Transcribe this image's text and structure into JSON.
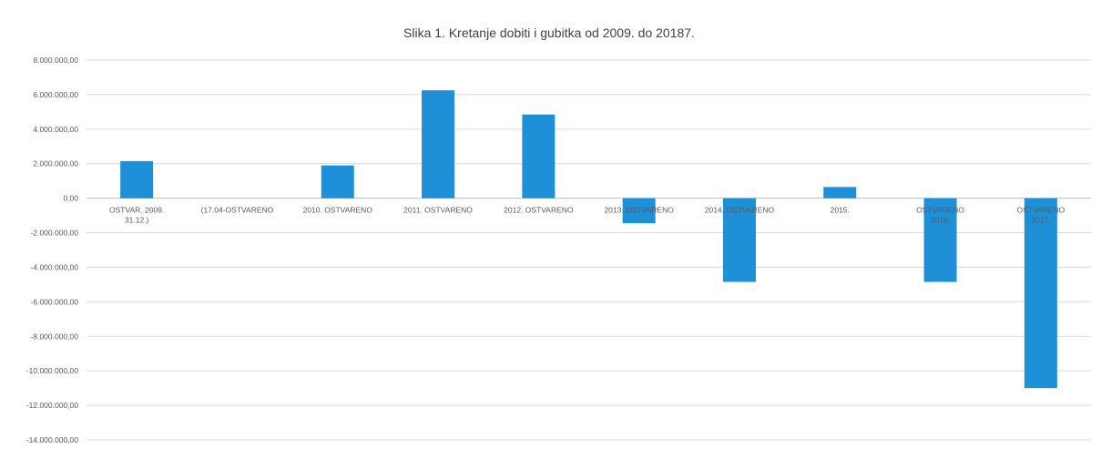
{
  "chart_data": {
    "type": "bar",
    "title": "Slika 1. Kretanje dobiti i gubitka  od 2009. do 20187.",
    "xlabel": "",
    "ylabel": "",
    "ylim": [
      -14000000,
      8000000
    ],
    "yticks": [
      8000000,
      6000000,
      4000000,
      2000000,
      0,
      -2000000,
      -4000000,
      -6000000,
      -8000000,
      -10000000,
      -12000000,
      -14000000
    ],
    "ytick_labels": [
      "8.000.000,00",
      "6.000.000,00",
      "4.000.000,00",
      "2.000.000,00",
      "0,00",
      "-2.000.000,00",
      "-4.000.000,00",
      "-6.000.000,00",
      "-8.000.000,00",
      "-10.000.000,00",
      "-12.000.000,00",
      "-14.000.000,00"
    ],
    "grid": true,
    "legend": "none",
    "categories": [
      [
        "OSTVAR. 2009.",
        "31.12.)"
      ],
      [
        "(17.04-OSTVARENO"
      ],
      [
        "2010. OSTVARENO"
      ],
      [
        "2011. OSTVARENO"
      ],
      [
        "2012. OSTVARENO"
      ],
      [
        "2013. OSTVARENO"
      ],
      [
        "2014. OSTVARENO"
      ],
      [
        "2015.",
        ""
      ],
      [
        "OSTVARENO",
        "2016."
      ],
      [
        "OSTVARENO",
        "2017."
      ]
    ],
    "values": [
      2150000,
      null,
      1900000,
      6250000,
      4850000,
      -1450000,
      -4850000,
      650000,
      -4850000,
      -11000000
    ],
    "bar_color": "#1e90d8"
  }
}
